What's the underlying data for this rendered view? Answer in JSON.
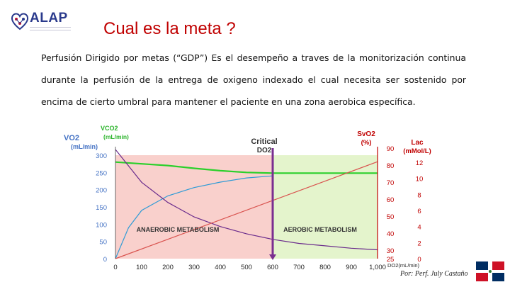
{
  "logo": {
    "text": "ALAP",
    "icon": "heart-network-logo-icon"
  },
  "title": "Cual es la meta ?",
  "paragraph": {
    "lead": "Perfusión Dirigido por metas",
    "rest": " (“GDP”) Es el desempeño a traves de la monitorización continua durante la perfusión de la entrega de oxigeno indexado el cual necesita ser sostenido por encima de cierto umbral para mantener el paciente en una zona aerobica específica."
  },
  "chart_data": {
    "type": "line",
    "labels": {
      "vco2": "VCO2",
      "vco2_unit": "(mL/min)",
      "vo2": "VO2",
      "vo2_unit": "(mL/min)",
      "critical": "Critical",
      "critical_sub": "DO2",
      "svo2": "SvO2",
      "svo2_unit": "(%)",
      "lac": "Lac",
      "lac_unit": "(mMol/L)",
      "anaerobic": "ANAEROBIC METABOLISM",
      "aerobic": "AEROBIC METABOLISM",
      "xlabel": "DO2(mL/min)"
    },
    "x_ticks": [
      "0",
      "100",
      "200",
      "300",
      "400",
      "500",
      "600",
      "700",
      "800",
      "900",
      "1,000"
    ],
    "xlim": [
      0,
      1000
    ],
    "left_axis": {
      "ticks": [
        "0",
        "50",
        "100",
        "150",
        "200",
        "250",
        "300"
      ],
      "ylim": [
        0,
        300
      ]
    },
    "svo2_axis": {
      "ticks": [
        "25",
        "30",
        "40",
        "50",
        "60",
        "70",
        "80",
        "90"
      ],
      "ylim": [
        25,
        90
      ]
    },
    "lac_axis": {
      "ticks": [
        "0",
        "2",
        "4",
        "6",
        "8",
        "10",
        "12"
      ],
      "ylim": [
        0,
        12
      ]
    },
    "critical_do2": 600,
    "series": [
      {
        "name": "VO2",
        "color": "#2e9bd6",
        "x": [
          0,
          50,
          100,
          200,
          300,
          400,
          500,
          600
        ],
        "y": [
          0,
          90,
          140,
          182,
          206,
          222,
          234,
          240
        ]
      },
      {
        "name": "VCO2",
        "color": "#2bd02b",
        "x": [
          0,
          100,
          200,
          300,
          400,
          500,
          600,
          800,
          1000
        ],
        "y": [
          280,
          275,
          270,
          262,
          255,
          250,
          248,
          248,
          248
        ]
      },
      {
        "name": "Lac",
        "color": "#6a2b8c",
        "x": [
          0,
          100,
          200,
          300,
          400,
          500,
          600,
          700,
          800,
          900,
          1000
        ],
        "y": [
          14,
          9.5,
          7,
          5.2,
          4,
          3.1,
          2.4,
          1.9,
          1.6,
          1.3,
          1.1
        ]
      },
      {
        "name": "SvO2",
        "color": "#d9534f",
        "x": [
          0,
          1000
        ],
        "y": [
          25,
          82
        ]
      }
    ],
    "colors": {
      "anaerobic_zone": "#f9d0cc",
      "aerobic_zone": "#e4f4cc",
      "critical_line": "#7a2f90",
      "axis_left": "#4472c4",
      "axis_right": "#c00000"
    }
  },
  "credit": "Por: Perf. July Castaño",
  "flag": {
    "icon": "dominican-flag-icon",
    "colors": {
      "blue": "#002d62",
      "red": "#ce1126"
    }
  }
}
